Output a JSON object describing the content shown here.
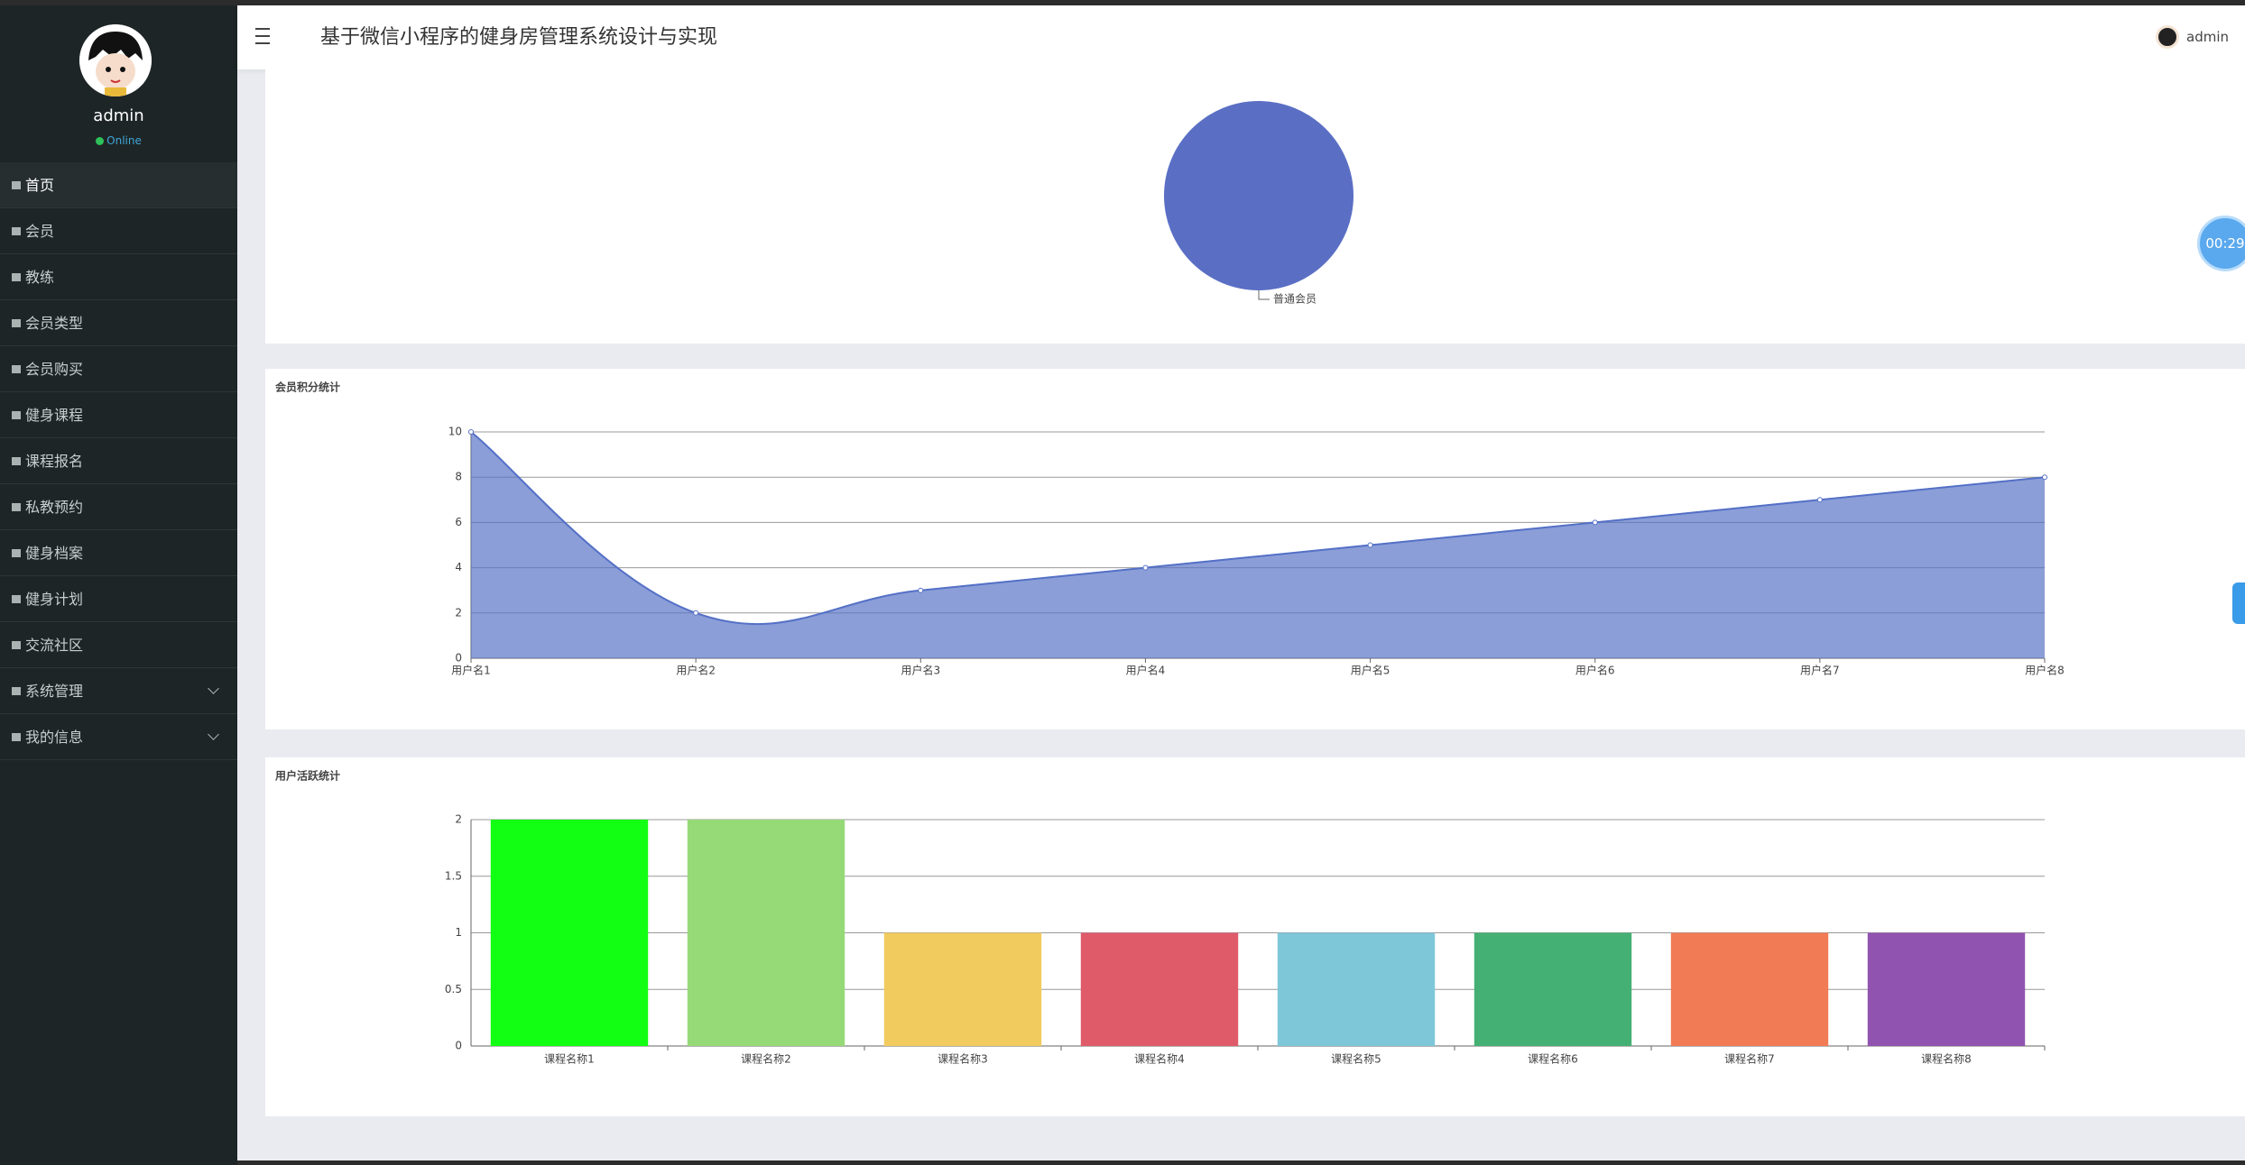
{
  "header": {
    "title": "基于微信小程序的健身房管理系统设计与实现",
    "user": "admin"
  },
  "sidebar": {
    "user": "admin",
    "status": "Online",
    "menu": [
      "首页",
      "会员",
      "教练",
      "会员类型",
      "会员购买",
      "健身课程",
      "课程报名",
      "私教预约",
      "健身档案",
      "健身计划",
      "交流社区",
      "系统管理",
      "我的信息"
    ]
  },
  "widget": {
    "timer": "00:29"
  },
  "chart_data": [
    {
      "type": "pie",
      "categories": [
        "普通会员"
      ],
      "values": [
        1
      ],
      "colors": [
        "#5a6fc4"
      ]
    },
    {
      "type": "line",
      "title": "会员积分统计",
      "categories": [
        "用户名1",
        "用户名2",
        "用户名3",
        "用户名4",
        "用户名5",
        "用户名6",
        "用户名7",
        "用户名8"
      ],
      "values": [
        10,
        2,
        3,
        4,
        5,
        6,
        7,
        8
      ],
      "color": "#5470c6",
      "area": true,
      "smooth": true,
      "ylim": [
        0,
        10
      ],
      "yticks": [
        0,
        2,
        4,
        6,
        8,
        10
      ],
      "grid": true
    },
    {
      "type": "bar",
      "title": "用户活跃统计",
      "categories": [
        "课程名称1",
        "课程名称2",
        "课程名称3",
        "课程名称4",
        "课程名称5",
        "课程名称6",
        "课程名称7",
        "课程名称8"
      ],
      "values": [
        2,
        2,
        1,
        1,
        1,
        1,
        1,
        1
      ],
      "colors": [
        "#12fe12",
        "#96d977",
        "#f2cb5e",
        "#e05b6a",
        "#7ec7d9",
        "#45b073",
        "#f07b54",
        "#9153b0"
      ],
      "ylim": [
        0,
        2
      ],
      "yticks": [
        0,
        0.5,
        1,
        1.5,
        2
      ],
      "grid": true
    }
  ]
}
